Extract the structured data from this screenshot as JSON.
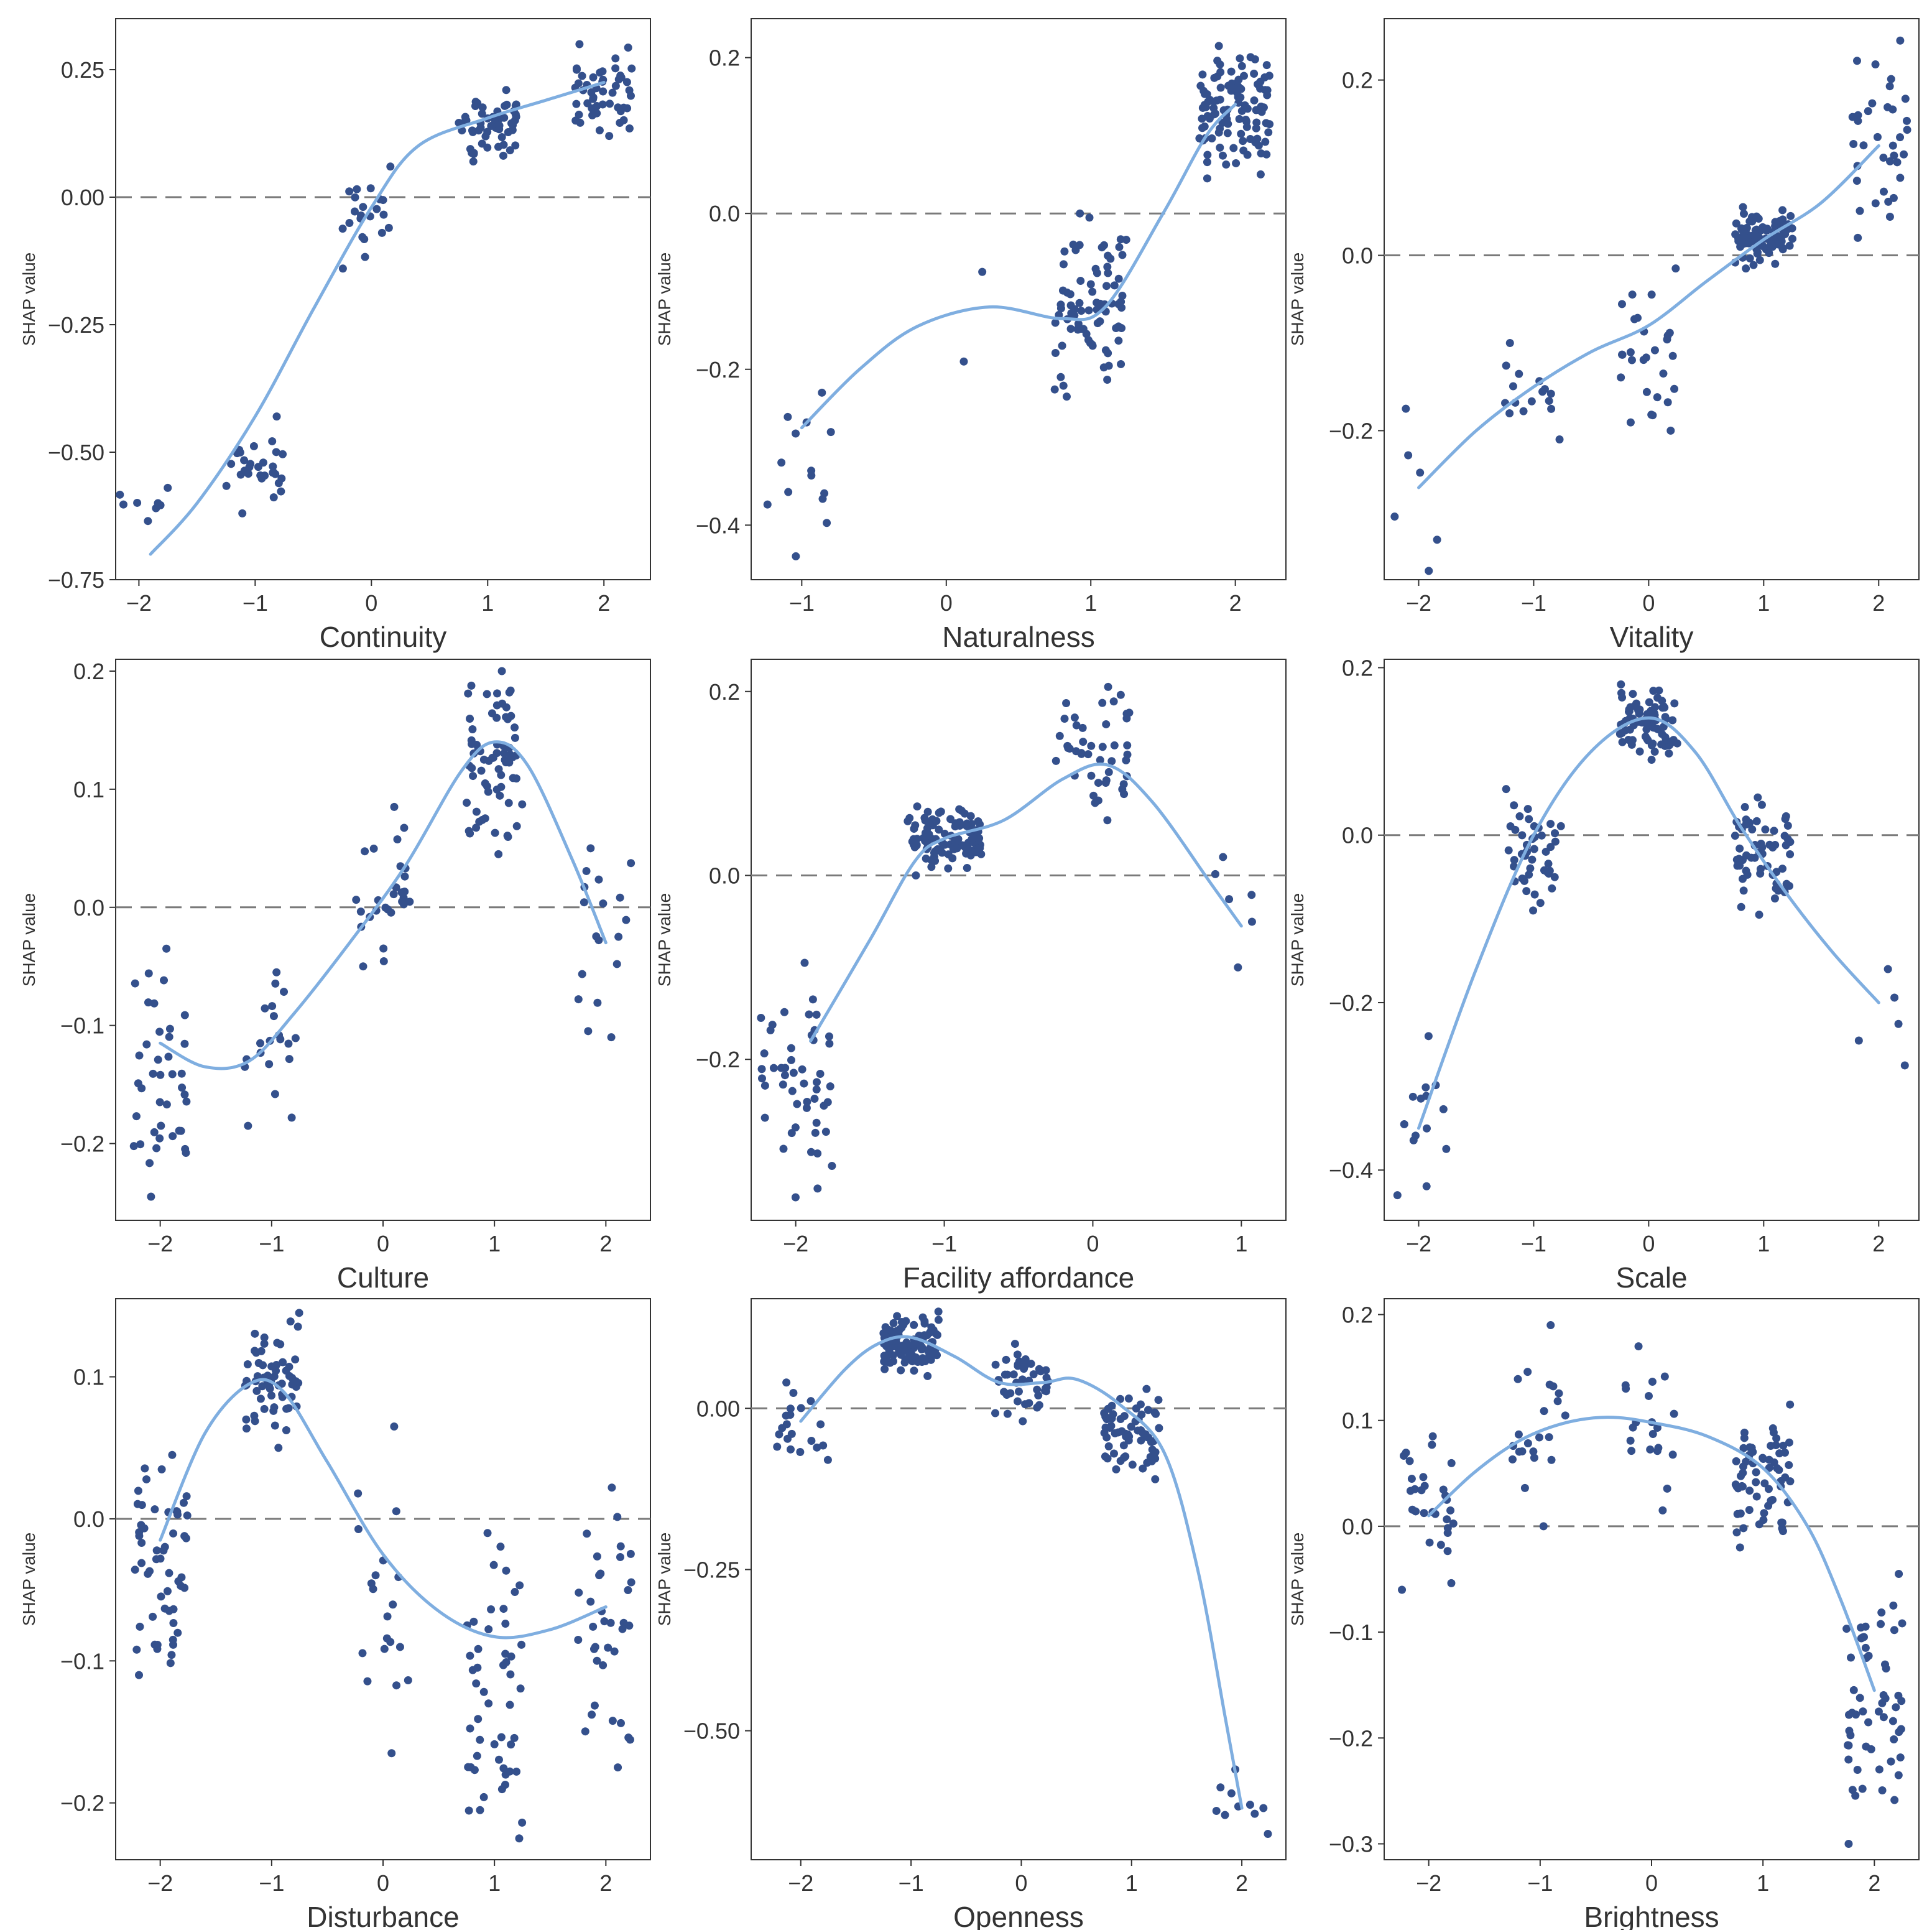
{
  "figure": {
    "colors": {
      "points": "#34508C",
      "curve": "#7FAEE0",
      "zero_line": "#7a7a7a",
      "frame": "#333333"
    }
  },
  "chart_data": [
    {
      "type": "scatter",
      "xlabel": "Continuity",
      "ylabel": "SHAP value",
      "xlim": [
        -2.2,
        2.4
      ],
      "ylim": [
        -0.75,
        0.35
      ],
      "xticks": [
        -2,
        -1,
        0,
        1,
        2
      ],
      "xtick_labels": [
        "−2",
        "−1",
        "0",
        "1",
        "2"
      ],
      "yticks": [
        -0.75,
        -0.5,
        -0.25,
        0,
        0.25
      ],
      "ytick_labels": [
        "−0.75",
        "−0.50",
        "−0.25",
        "0.00",
        "0.25"
      ],
      "zero_line": 0,
      "clusters": [
        {
          "x": -2,
          "n": 8,
          "y_min": -0.635,
          "y_max": -0.57
        },
        {
          "x": -1,
          "n": 30,
          "y_min": -0.62,
          "y_max": -0.43
        },
        {
          "x": 0,
          "n": 22,
          "y_min": -0.14,
          "y_max": 0.06
        },
        {
          "x": 1,
          "n": 60,
          "y_min": 0.07,
          "y_max": 0.21
        },
        {
          "x": 2,
          "n": 50,
          "y_min": 0.12,
          "y_max": 0.3
        }
      ],
      "trend": [
        {
          "x": -1.9,
          "y": -0.7
        },
        {
          "x": -1.5,
          "y": -0.6
        },
        {
          "x": -1.0,
          "y": -0.43
        },
        {
          "x": -0.5,
          "y": -0.22
        },
        {
          "x": 0.0,
          "y": -0.02
        },
        {
          "x": 0.4,
          "y": 0.1
        },
        {
          "x": 1.0,
          "y": 0.155
        },
        {
          "x": 1.5,
          "y": 0.19
        },
        {
          "x": 2.0,
          "y": 0.225
        }
      ]
    },
    {
      "type": "scatter",
      "xlabel": "Naturalness",
      "ylabel": "SHAP value",
      "xlim": [
        -1.35,
        2.35
      ],
      "ylim": [
        -0.47,
        0.25
      ],
      "xticks": [
        -1,
        0,
        1,
        2
      ],
      "xtick_labels": [
        "−1",
        "0",
        "1",
        "2"
      ],
      "yticks": [
        -0.4,
        -0.2,
        0,
        0.2
      ],
      "ytick_labels": [
        "−0.4",
        "−0.2",
        "0.0",
        "0.2"
      ],
      "zero_line": 0,
      "clusters": [
        {
          "x": -1,
          "n": 14,
          "y_min": -0.44,
          "y_max": -0.23
        },
        {
          "x": 0,
          "n": 2,
          "y_min": -0.19,
          "y_max": -0.075
        },
        {
          "x": 1,
          "n": 80,
          "y_min": -0.235,
          "y_max": 0.0
        },
        {
          "x": 2,
          "n": 110,
          "y_min": 0.045,
          "y_max": 0.215
        }
      ],
      "trend": [
        {
          "x": -1.0,
          "y": -0.275
        },
        {
          "x": -0.6,
          "y": -0.2
        },
        {
          "x": -0.2,
          "y": -0.145
        },
        {
          "x": 0.3,
          "y": -0.12
        },
        {
          "x": 0.8,
          "y": -0.135
        },
        {
          "x": 1.1,
          "y": -0.12
        },
        {
          "x": 1.5,
          "y": 0.0
        },
        {
          "x": 1.8,
          "y": 0.1
        },
        {
          "x": 2.0,
          "y": 0.14
        }
      ]
    },
    {
      "type": "scatter",
      "xlabel": "Vitality",
      "ylabel": "SHAP value",
      "xlim": [
        -2.3,
        2.35
      ],
      "ylim": [
        -0.37,
        0.27
      ],
      "xticks": [
        -2,
        -1,
        0,
        1,
        2
      ],
      "xtick_labels": [
        "−2",
        "−1",
        "0",
        "1",
        "2"
      ],
      "yticks": [
        -0.2,
        0,
        0.2
      ],
      "ytick_labels": [
        "−0.2",
        "0.0",
        "0.2"
      ],
      "zero_line": 0,
      "clusters": [
        {
          "x": -2,
          "n": 6,
          "y_min": -0.36,
          "y_max": -0.175
        },
        {
          "x": -1,
          "n": 16,
          "y_min": -0.21,
          "y_max": -0.1
        },
        {
          "x": 0,
          "n": 28,
          "y_min": -0.2,
          "y_max": -0.015
        },
        {
          "x": 1,
          "n": 90,
          "y_min": -0.015,
          "y_max": 0.055
        },
        {
          "x": 2,
          "n": 36,
          "y_min": 0.02,
          "y_max": 0.245
        }
      ],
      "trend": [
        {
          "x": -2.0,
          "y": -0.265
        },
        {
          "x": -1.5,
          "y": -0.2
        },
        {
          "x": -1.0,
          "y": -0.15
        },
        {
          "x": -0.5,
          "y": -0.11
        },
        {
          "x": 0.0,
          "y": -0.08
        },
        {
          "x": 0.5,
          "y": -0.03
        },
        {
          "x": 1.0,
          "y": 0.018
        },
        {
          "x": 1.5,
          "y": 0.06
        },
        {
          "x": 2.0,
          "y": 0.125
        }
      ]
    },
    {
      "type": "scatter",
      "xlabel": "Culture",
      "ylabel": "SHAP value",
      "xlim": [
        -2.4,
        2.4
      ],
      "ylim": [
        -0.265,
        0.21
      ],
      "xticks": [
        -2,
        -1,
        0,
        1,
        2
      ],
      "xtick_labels": [
        "−2",
        "−1",
        "0",
        "1",
        "2"
      ],
      "yticks": [
        -0.2,
        -0.1,
        0,
        0.1,
        0.2
      ],
      "ytick_labels": [
        "−0.2",
        "−0.1",
        "0.0",
        "0.1",
        "0.2"
      ],
      "zero_line": 0,
      "clusters": [
        {
          "x": -2,
          "n": 40,
          "y_min": -0.245,
          "y_max": -0.035
        },
        {
          "x": -1,
          "n": 20,
          "y_min": -0.185,
          "y_max": -0.055
        },
        {
          "x": 0,
          "n": 28,
          "y_min": -0.05,
          "y_max": 0.085
        },
        {
          "x": 1,
          "n": 70,
          "y_min": 0.045,
          "y_max": 0.2
        },
        {
          "x": 2,
          "n": 18,
          "y_min": -0.11,
          "y_max": 0.05
        }
      ],
      "trend": [
        {
          "x": -2.0,
          "y": -0.115
        },
        {
          "x": -1.6,
          "y": -0.135
        },
        {
          "x": -1.2,
          "y": -0.13
        },
        {
          "x": -0.8,
          "y": -0.09
        },
        {
          "x": -0.3,
          "y": -0.03
        },
        {
          "x": 0.2,
          "y": 0.035
        },
        {
          "x": 0.7,
          "y": 0.115
        },
        {
          "x": 1.0,
          "y": 0.14
        },
        {
          "x": 1.3,
          "y": 0.12
        },
        {
          "x": 1.7,
          "y": 0.04
        },
        {
          "x": 2.0,
          "y": -0.03
        }
      ]
    },
    {
      "type": "scatter",
      "xlabel": "Facility affordance",
      "ylabel": "SHAP value",
      "xlim": [
        -2.3,
        1.3
      ],
      "ylim": [
        -0.375,
        0.235
      ],
      "xticks": [
        -2,
        -1,
        0,
        1
      ],
      "xtick_labels": [
        "−2",
        "−1",
        "0",
        "1"
      ],
      "yticks": [
        -0.2,
        0,
        0.2
      ],
      "ytick_labels": [
        "−0.2",
        "0.0",
        "0.2"
      ],
      "zero_line": 0,
      "clusters": [
        {
          "x": -2,
          "n": 50,
          "y_min": -0.35,
          "y_max": -0.095
        },
        {
          "x": -1,
          "n": 100,
          "y_min": 0.0,
          "y_max": 0.075
        },
        {
          "x": 0,
          "n": 45,
          "y_min": 0.06,
          "y_max": 0.205
        },
        {
          "x": 1,
          "n": 6,
          "y_min": -0.1,
          "y_max": 0.02
        }
      ],
      "trend": [
        {
          "x": -1.9,
          "y": -0.18
        },
        {
          "x": -1.5,
          "y": -0.07
        },
        {
          "x": -1.2,
          "y": 0.015
        },
        {
          "x": -1.0,
          "y": 0.04
        },
        {
          "x": -0.6,
          "y": 0.06
        },
        {
          "x": -0.2,
          "y": 0.105
        },
        {
          "x": 0.1,
          "y": 0.12
        },
        {
          "x": 0.4,
          "y": 0.08
        },
        {
          "x": 0.8,
          "y": -0.01
        },
        {
          "x": 1.0,
          "y": -0.055
        }
      ]
    },
    {
      "type": "scatter",
      "xlabel": "Scale",
      "ylabel": "SHAP value",
      "xlim": [
        -2.3,
        2.35
      ],
      "ylim": [
        -0.46,
        0.21
      ],
      "xticks": [
        -2,
        -1,
        0,
        1,
        2
      ],
      "xtick_labels": [
        "−2",
        "−1",
        "0",
        "1",
        "2"
      ],
      "yticks": [
        -0.4,
        -0.2,
        0,
        0.2
      ],
      "ytick_labels": [
        "−0.4",
        "−0.2",
        "0.0",
        "0.2"
      ],
      "zero_line": 0,
      "clusters": [
        {
          "x": -2,
          "n": 14,
          "y_min": -0.43,
          "y_max": -0.24
        },
        {
          "x": -1,
          "n": 45,
          "y_min": -0.09,
          "y_max": 0.055
        },
        {
          "x": 0,
          "n": 80,
          "y_min": 0.09,
          "y_max": 0.18
        },
        {
          "x": 1,
          "n": 60,
          "y_min": -0.095,
          "y_max": 0.045
        },
        {
          "x": 2,
          "n": 5,
          "y_min": -0.275,
          "y_max": -0.16
        }
      ],
      "trend": [
        {
          "x": -2.0,
          "y": -0.35
        },
        {
          "x": -1.5,
          "y": -0.16
        },
        {
          "x": -1.0,
          "y": 0.0
        },
        {
          "x": -0.5,
          "y": 0.1
        },
        {
          "x": 0.0,
          "y": 0.14
        },
        {
          "x": 0.4,
          "y": 0.1
        },
        {
          "x": 0.8,
          "y": 0.01
        },
        {
          "x": 1.2,
          "y": -0.07
        },
        {
          "x": 1.6,
          "y": -0.14
        },
        {
          "x": 2.0,
          "y": -0.2
        }
      ]
    },
    {
      "type": "scatter",
      "xlabel": "Disturbance",
      "ylabel": "SHAP value",
      "xlim": [
        -2.4,
        2.4
      ],
      "ylim": [
        -0.24,
        0.155
      ],
      "xticks": [
        -2,
        -1,
        0,
        1,
        2
      ],
      "xtick_labels": [
        "−2",
        "−1",
        "0",
        "1",
        "2"
      ],
      "yticks": [
        -0.2,
        -0.1,
        0,
        0.1
      ],
      "ytick_labels": [
        "−0.2",
        "−0.1",
        "0.0",
        "0.1"
      ],
      "zero_line": 0,
      "clusters": [
        {
          "x": -2,
          "n": 55,
          "y_min": -0.11,
          "y_max": 0.045
        },
        {
          "x": -1,
          "n": 65,
          "y_min": 0.05,
          "y_max": 0.145
        },
        {
          "x": 0,
          "n": 20,
          "y_min": -0.165,
          "y_max": 0.065
        },
        {
          "x": 1,
          "n": 50,
          "y_min": -0.225,
          "y_max": -0.01
        },
        {
          "x": 2,
          "n": 35,
          "y_min": -0.175,
          "y_max": 0.022
        }
      ],
      "trend": [
        {
          "x": -2.0,
          "y": -0.015
        },
        {
          "x": -1.6,
          "y": 0.06
        },
        {
          "x": -1.2,
          "y": 0.095
        },
        {
          "x": -0.9,
          "y": 0.09
        },
        {
          "x": -0.5,
          "y": 0.04
        },
        {
          "x": 0.0,
          "y": -0.025
        },
        {
          "x": 0.5,
          "y": -0.065
        },
        {
          "x": 1.0,
          "y": -0.083
        },
        {
          "x": 1.5,
          "y": -0.078
        },
        {
          "x": 2.0,
          "y": -0.062
        }
      ]
    },
    {
      "type": "scatter",
      "xlabel": "Openness",
      "ylabel": "SHAP value",
      "xlim": [
        -2.45,
        2.4
      ],
      "ylim": [
        -0.7,
        0.17
      ],
      "xticks": [
        -2,
        -1,
        0,
        1,
        2
      ],
      "xtick_labels": [
        "−2",
        "−1",
        "0",
        "1",
        "2"
      ],
      "yticks": [
        -0.5,
        -0.25,
        0
      ],
      "ytick_labels": [
        "−0.50",
        "−0.25",
        "0.00"
      ],
      "zero_line": 0,
      "clusters": [
        {
          "x": -2,
          "n": 20,
          "y_min": -0.08,
          "y_max": 0.04
        },
        {
          "x": -1,
          "n": 110,
          "y_min": 0.05,
          "y_max": 0.15
        },
        {
          "x": 0,
          "n": 45,
          "y_min": -0.02,
          "y_max": 0.1
        },
        {
          "x": 1,
          "n": 65,
          "y_min": -0.11,
          "y_max": 0.03
        },
        {
          "x": 2,
          "n": 10,
          "y_min": -0.66,
          "y_max": -0.56
        }
      ],
      "trend": [
        {
          "x": -2.0,
          "y": -0.02
        },
        {
          "x": -1.6,
          "y": 0.06
        },
        {
          "x": -1.3,
          "y": 0.1
        },
        {
          "x": -1.0,
          "y": 0.11
        },
        {
          "x": -0.6,
          "y": 0.08
        },
        {
          "x": -0.2,
          "y": 0.04
        },
        {
          "x": 0.2,
          "y": 0.04
        },
        {
          "x": 0.5,
          "y": 0.045
        },
        {
          "x": 0.9,
          "y": 0.005
        },
        {
          "x": 1.3,
          "y": -0.07
        },
        {
          "x": 1.6,
          "y": -0.25
        },
        {
          "x": 1.85,
          "y": -0.48
        },
        {
          "x": 2.0,
          "y": -0.62
        }
      ]
    },
    {
      "type": "scatter",
      "xlabel": "Brightness",
      "ylabel": "SHAP value",
      "xlim": [
        -2.4,
        2.4
      ],
      "ylim": [
        -0.315,
        0.215
      ],
      "xticks": [
        -2,
        -1,
        0,
        1,
        2
      ],
      "xtick_labels": [
        "−2",
        "−1",
        "0",
        "1",
        "2"
      ],
      "yticks": [
        -0.3,
        -0.2,
        -0.1,
        0,
        0.1,
        0.2
      ],
      "ytick_labels": [
        "−0.3",
        "−0.2",
        "−0.1",
        "0.0",
        "0.1",
        "0.2"
      ],
      "zero_line": 0,
      "clusters": [
        {
          "x": -2,
          "n": 30,
          "y_min": -0.06,
          "y_max": 0.085
        },
        {
          "x": -1,
          "n": 22,
          "y_min": 0.0,
          "y_max": 0.19
        },
        {
          "x": 0,
          "n": 20,
          "y_min": 0.015,
          "y_max": 0.17
        },
        {
          "x": 1,
          "n": 65,
          "y_min": -0.02,
          "y_max": 0.115
        },
        {
          "x": 2,
          "n": 55,
          "y_min": -0.3,
          "y_max": -0.045
        }
      ],
      "trend": [
        {
          "x": -2.0,
          "y": 0.01
        },
        {
          "x": -1.6,
          "y": 0.05
        },
        {
          "x": -1.2,
          "y": 0.08
        },
        {
          "x": -0.8,
          "y": 0.097
        },
        {
          "x": -0.4,
          "y": 0.103
        },
        {
          "x": 0.0,
          "y": 0.098
        },
        {
          "x": 0.5,
          "y": 0.085
        },
        {
          "x": 1.0,
          "y": 0.055
        },
        {
          "x": 1.4,
          "y": 0.0
        },
        {
          "x": 1.7,
          "y": -0.07
        },
        {
          "x": 2.0,
          "y": -0.155
        }
      ]
    }
  ]
}
